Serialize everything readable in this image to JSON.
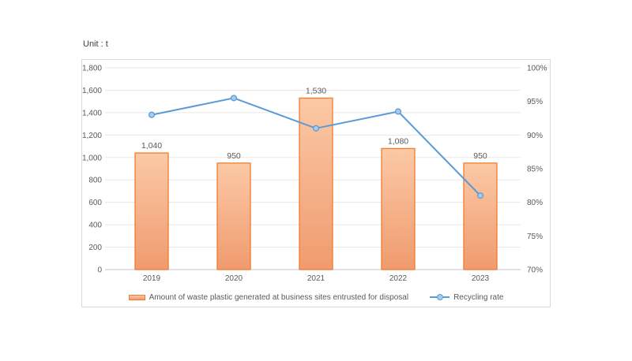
{
  "chart": {
    "unit_label": "Unit : t",
    "colors": {
      "bar_fill_top": "#FBC9A6",
      "bar_fill_bottom": "#F09B6E",
      "bar_border": "#ED7D31",
      "line_color": "#5B9BD5",
      "marker_fill": "#ACCBEB",
      "gridline": "#E8E8E8",
      "axis_line": "#C6C6C6",
      "tick_text": "#595959",
      "frame_border": "#D9D9D9"
    }
  },
  "chart_data": {
    "type": "bar",
    "subtype": "combo-bar-line",
    "categories": [
      "2019",
      "2020",
      "2021",
      "2022",
      "2023"
    ],
    "series": [
      {
        "name": "Amount of waste plastic generated at business sites entrusted for disposal",
        "type": "bar",
        "axis": "left",
        "values": [
          1040,
          950,
          1530,
          1080,
          950
        ],
        "data_labels": [
          "1,040",
          "950",
          "1,530",
          "1,080",
          "950"
        ]
      },
      {
        "name": "Recycling rate",
        "type": "line",
        "axis": "right",
        "values": [
          93,
          95.5,
          91,
          93.5,
          81
        ]
      }
    ],
    "title": "Unit : t",
    "xlabel": "",
    "ylabel": "",
    "left_axis": {
      "min": 0,
      "max": 1800,
      "step": 200,
      "tick_labels": [
        "0",
        "200",
        "400",
        "600",
        "800",
        "1,000",
        "1,200",
        "1,400",
        "1,600",
        "1,800"
      ]
    },
    "right_axis": {
      "min": 70,
      "max": 100,
      "step": 5,
      "tick_labels": [
        "70%",
        "75%",
        "80%",
        "85%",
        "90%",
        "95%",
        "100%"
      ]
    },
    "grid": true,
    "legend_position": "bottom"
  }
}
